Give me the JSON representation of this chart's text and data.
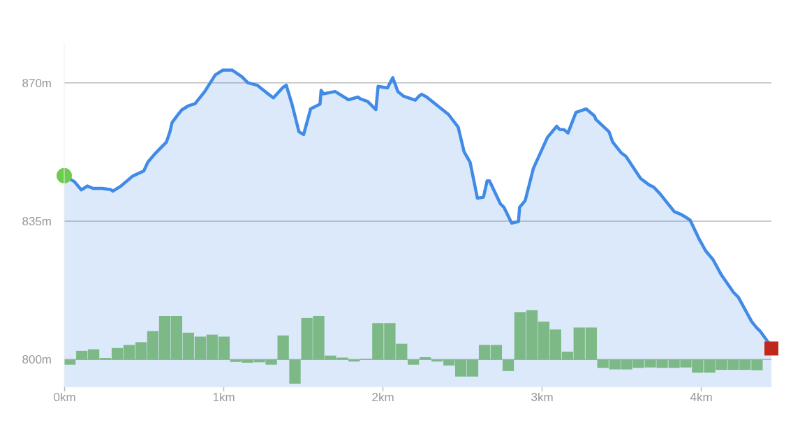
{
  "chart_data": {
    "type": "area",
    "series": [
      {
        "color": "#418be6",
        "x": [
          0,
          0.064,
          0.108,
          0.145,
          0.181,
          0.24,
          0.291,
          0.306,
          0.357,
          0.43,
          0.5,
          0.525,
          0.569,
          0.642,
          0.664,
          0.678,
          0.737,
          0.781,
          0.822,
          0.883,
          0.949,
          0.997,
          1.056,
          1.117,
          1.154,
          1.212,
          1.271,
          1.314,
          1.373,
          1.395,
          1.431,
          1.475,
          1.504,
          1.548,
          1.607,
          1.614,
          1.628,
          1.702,
          1.786,
          1.845,
          1.863,
          1.906,
          1.958,
          1.972,
          2.031,
          2.064,
          2.096,
          2.133,
          2.206,
          2.228,
          2.246,
          2.277,
          2.414,
          2.475,
          2.512,
          2.55,
          2.596,
          2.634,
          2.657,
          2.672,
          2.74,
          2.763,
          2.811,
          2.854,
          2.861,
          2.896,
          2.948,
          3.036,
          3.094,
          3.112,
          3.142,
          3.165,
          3.215,
          3.279,
          3.332,
          3.339,
          3.423,
          3.446,
          3.499,
          3.529,
          3.621,
          3.674,
          3.704,
          3.742,
          3.833,
          3.871,
          3.901,
          3.932,
          3.985,
          4.03,
          4.076,
          4.129,
          4.205,
          4.235,
          4.319,
          4.349,
          4.372,
          4.433,
          4.443
        ],
        "values": [
          846.5,
          845.0,
          842.9,
          843.9,
          843.3,
          843.3,
          843.0,
          842.6,
          843.9,
          846.4,
          847.7,
          849.9,
          852.0,
          855.0,
          857.6,
          860.0,
          863.1,
          864.2,
          864.7,
          867.8,
          872.0,
          873.2,
          873.2,
          871.5,
          870.0,
          869.4,
          867.5,
          866.2,
          868.8,
          869.4,
          864.6,
          857.6,
          856.9,
          863.4,
          864.6,
          868.1,
          867.2,
          867.8,
          865.7,
          866.4,
          865.9,
          865.3,
          863.2,
          869.1,
          868.7,
          871.3,
          867.8,
          866.6,
          865.6,
          866.6,
          867.1,
          866.4,
          862.0,
          858.8,
          852.6,
          849.9,
          840.8,
          841.1,
          845.2,
          845.2,
          839.4,
          838.5,
          834.5,
          834.9,
          838.5,
          840.2,
          848.4,
          856.2,
          859.0,
          858.2,
          858.1,
          857.3,
          862.5,
          863.4,
          861.6,
          860.8,
          857.6,
          855.0,
          852.3,
          851.4,
          845.8,
          844.2,
          843.6,
          842.0,
          837.4,
          836.8,
          836.1,
          835.3,
          830.8,
          827.5,
          825.3,
          821.4,
          817.0,
          815.8,
          809.6,
          808.1,
          807.2,
          803.8,
          802.8
        ]
      },
      {
        "type": "bar",
        "color": "#8bc470",
        "x": [
          0.037,
          0.112,
          0.186,
          0.26,
          0.335,
          0.409,
          0.484,
          0.558,
          0.633,
          0.707,
          0.781,
          0.856,
          0.93,
          1.005,
          1.079,
          1.153,
          1.228,
          1.302,
          1.377,
          1.451,
          1.526,
          1.6,
          1.674,
          1.749,
          1.823,
          1.898,
          1.972,
          2.047,
          2.121,
          2.195,
          2.27,
          2.344,
          2.419,
          2.493,
          2.567,
          2.642,
          2.716,
          2.791,
          2.865,
          2.94,
          3.014,
          3.088,
          3.163,
          3.237,
          3.312,
          3.386,
          3.461,
          3.535,
          3.609,
          3.684,
          3.758,
          3.833,
          3.907,
          3.981,
          4.056,
          4.13,
          4.205,
          4.279,
          4.354
        ],
        "values": [
          -1.3,
          2.2,
          2.6,
          0.4,
          2.9,
          3.7,
          4.4,
          7.2,
          11,
          11,
          6.8,
          5.8,
          6.3,
          5.8,
          -0.6,
          -0.8,
          -0.7,
          -1.3,
          6.1,
          -6.1,
          10.5,
          11,
          1.0,
          0.5,
          -0.5,
          0.2,
          9.2,
          9.2,
          4.0,
          -1.3,
          0.6,
          -0.5,
          -1.5,
          -4.3,
          -4.3,
          3.7,
          3.7,
          -2.9,
          12,
          12.5,
          9.6,
          7.6,
          2.0,
          8.1,
          8.1,
          -2.1,
          -2.5,
          -2.5,
          -2.1,
          -2.0,
          -2.1,
          -2.1,
          -2.0,
          -3.3,
          -3.3,
          -2.6,
          -2.6,
          -2.6,
          -2.7
        ],
        "base": [
          800,
          800,
          800,
          800,
          800,
          800,
          800,
          800,
          800,
          800,
          800,
          800,
          800,
          800,
          800,
          800,
          800,
          800,
          800,
          800,
          800,
          800,
          800,
          800,
          800,
          800,
          800,
          800,
          800,
          800,
          800,
          800,
          800,
          800,
          800,
          800,
          800,
          800,
          800,
          800,
          800,
          800,
          800,
          800,
          800,
          800,
          800,
          800,
          800,
          800,
          800,
          800,
          800,
          800,
          800,
          800,
          800,
          800,
          800
        ]
      }
    ],
    "xlim": [
      0,
      4.443
    ],
    "ylim": [
      793,
      880
    ],
    "xticks": [
      {
        "value": 0,
        "label": "0km"
      },
      {
        "value": 1,
        "label": "1km"
      },
      {
        "value": 2,
        "label": "2km"
      },
      {
        "value": 3,
        "label": "3km"
      },
      {
        "value": 4,
        "label": "4km"
      }
    ],
    "yticks": [
      {
        "value": 800,
        "label": "800m"
      },
      {
        "value": 835,
        "label": "835m"
      },
      {
        "value": 870,
        "label": "870m"
      }
    ],
    "grid": "y"
  }
}
